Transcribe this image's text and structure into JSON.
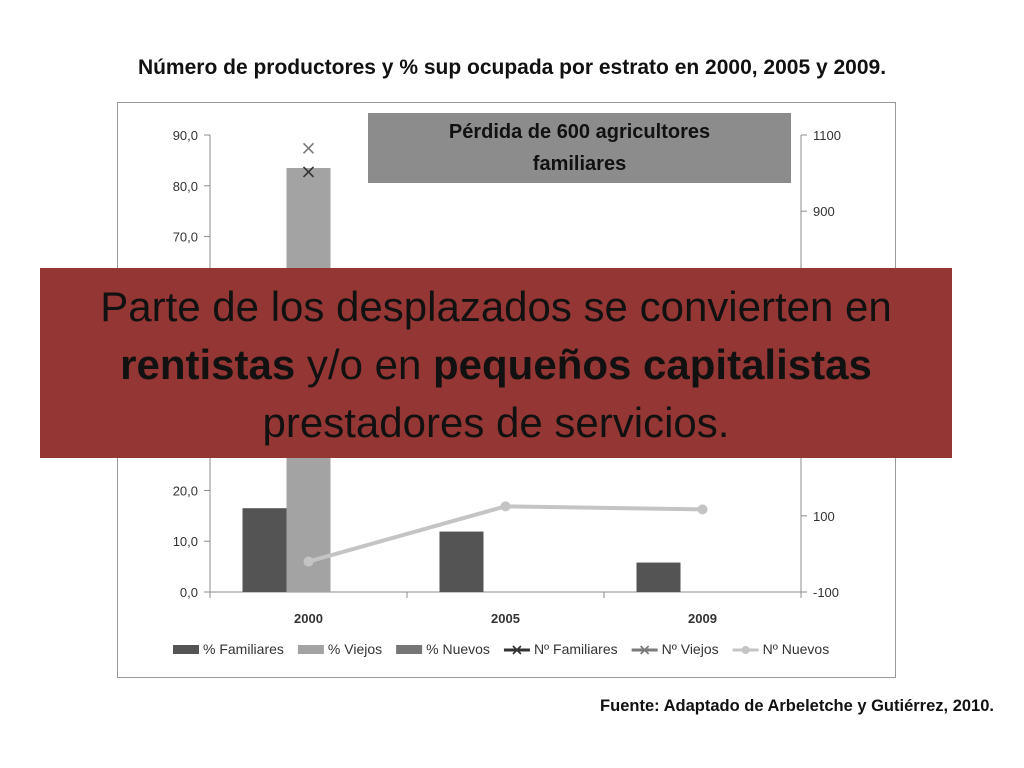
{
  "slide": {
    "title": "Número de productores y % sup ocupada por estrato en  2000, 2005 y 2009.",
    "source": "Fuente: Adaptado de Arbeletche y Gutiérrez, 2010."
  },
  "callout": {
    "line1": "Pérdida de 600 agricultores",
    "line2": "familiares"
  },
  "overlay": {
    "part1": "Parte de los desplazados se convierten en ",
    "bold1": "rentistas",
    "part2": " y/o en ",
    "bold2": "pequeños capitalistas",
    "part3": " prestadores de servicios."
  },
  "chart_data": {
    "type": "bar",
    "categories": [
      "2000",
      "2005",
      "2009"
    ],
    "y_left": {
      "range": [
        0,
        90
      ],
      "ticks": [
        "0,0",
        "10,0",
        "20,0",
        "70,0",
        "80,0",
        "90,0"
      ],
      "tick_values": [
        0,
        10,
        20,
        70,
        80,
        90
      ]
    },
    "y_right": {
      "range": [
        -100,
        1100
      ],
      "ticks": [
        "-100",
        "100",
        "900",
        "1100"
      ],
      "tick_values": [
        -100,
        100,
        900,
        1100
      ]
    },
    "bar_series": [
      {
        "name": "% Familiares",
        "values": [
          16.5,
          11.9,
          5.8
        ],
        "color": "#545454"
      },
      {
        "name": "% Viejos",
        "values": [
          83.5,
          null,
          null
        ],
        "color": "#a3a3a3"
      },
      {
        "name": "% Nuevos",
        "values": [
          null,
          null,
          null
        ],
        "color": "#767676"
      }
    ],
    "line_series": [
      {
        "name": "Nº Familiares",
        "values": [
          1003,
          null,
          null
        ],
        "color": "#333333",
        "marker": "x"
      },
      {
        "name": "Nº Viejos",
        "values": [
          1065,
          null,
          null
        ],
        "color": "#7a7a7a",
        "marker": "x"
      },
      {
        "name": "Nº Nuevos",
        "values": [
          -20,
          125,
          117
        ],
        "color": "#c4c4c4",
        "marker": "circle"
      }
    ],
    "legend_position": "bottom",
    "colors": {
      "grid_axis": "#8c8c8c"
    }
  }
}
